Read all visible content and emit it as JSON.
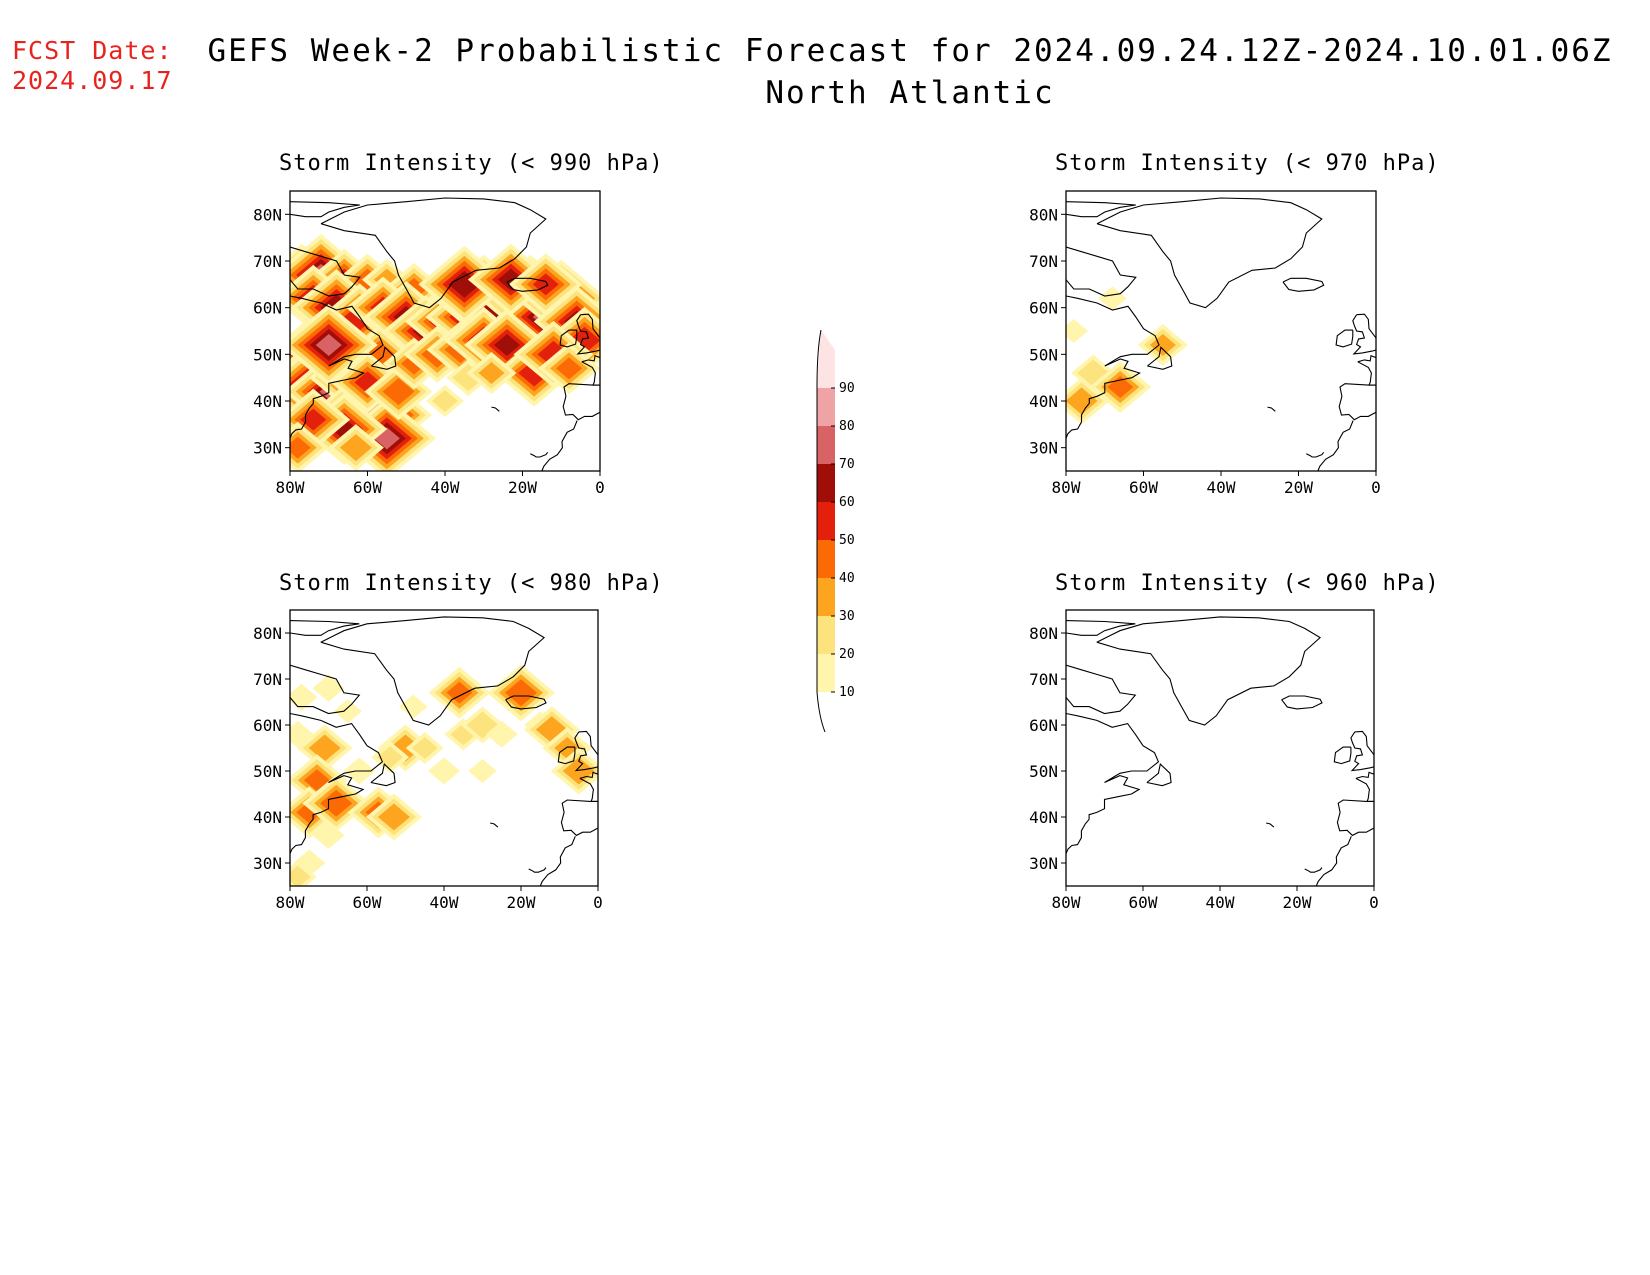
{
  "header": {
    "fcst_label": "FCST Date:",
    "fcst_date": "2024.09.17",
    "title": "GEFS Week-2 Probabilistic Forecast for 2024.09.24.12Z-2024.10.01.06Z",
    "subtitle": "North Atlantic"
  },
  "axes": {
    "lat_labels": [
      "80N",
      "70N",
      "60N",
      "50N",
      "40N",
      "30N"
    ],
    "lon_labels": [
      "80W",
      "60W",
      "40W",
      "20W",
      "0"
    ]
  },
  "colorbar": {
    "levels": [
      "10",
      "20",
      "30",
      "40",
      "50",
      "60",
      "70",
      "80",
      "90"
    ],
    "colors": [
      "#fff5ac",
      "#fde37e",
      "#fda51f",
      "#fc6a05",
      "#e3200c",
      "#a00f07",
      "#d96364",
      "#f0a3a5",
      "#fde3e3"
    ]
  },
  "chart_data": [
    {
      "type": "heatmap",
      "title": "Storm Intensity (< 990 hPa)",
      "unit": "probability %",
      "x": "longitude",
      "y": "latitude",
      "xlim": [
        -80,
        0
      ],
      "ylim": [
        25,
        85
      ],
      "grid": false,
      "points": [
        {
          "lon": -77,
          "lat": 66,
          "v": 60
        },
        {
          "lon": -72,
          "lat": 67,
          "v": 70
        },
        {
          "lon": -66,
          "lat": 66,
          "v": 50
        },
        {
          "lon": -60,
          "lat": 66,
          "v": 40
        },
        {
          "lon": -55,
          "lat": 66,
          "v": 30
        },
        {
          "lon": -48,
          "lat": 64,
          "v": 40
        },
        {
          "lon": -74,
          "lat": 62,
          "v": 55
        },
        {
          "lon": -68,
          "lat": 60,
          "v": 65
        },
        {
          "lon": -62,
          "lat": 58,
          "v": 55
        },
        {
          "lon": -56,
          "lat": 60,
          "v": 50
        },
        {
          "lon": -50,
          "lat": 58,
          "v": 60
        },
        {
          "lon": -45,
          "lat": 55,
          "v": 60
        },
        {
          "lon": -40,
          "lat": 57,
          "v": 55
        },
        {
          "lon": -34,
          "lat": 58,
          "v": 60
        },
        {
          "lon": -30,
          "lat": 62,
          "v": 75
        },
        {
          "lon": -25,
          "lat": 60,
          "v": 70
        },
        {
          "lon": -18,
          "lat": 62,
          "v": 75
        },
        {
          "lon": -14,
          "lat": 58,
          "v": 70
        },
        {
          "lon": -10,
          "lat": 62,
          "v": 65
        },
        {
          "lon": -6,
          "lat": 57,
          "v": 60
        },
        {
          "lon": -4,
          "lat": 53,
          "v": 55
        },
        {
          "lon": -35,
          "lat": 65,
          "v": 65
        },
        {
          "lon": -23,
          "lat": 66,
          "v": 60
        },
        {
          "lon": -14,
          "lat": 65,
          "v": 50
        },
        {
          "lon": -76,
          "lat": 50,
          "v": 55
        },
        {
          "lon": -71,
          "lat": 47,
          "v": 65
        },
        {
          "lon": -74,
          "lat": 43,
          "v": 75
        },
        {
          "lon": -69,
          "lat": 42,
          "v": 70
        },
        {
          "lon": -64,
          "lat": 45,
          "v": 60
        },
        {
          "lon": -57,
          "lat": 50,
          "v": 45
        },
        {
          "lon": -62,
          "lat": 38,
          "v": 65
        },
        {
          "lon": -56,
          "lat": 37,
          "v": 70
        },
        {
          "lon": -55,
          "lat": 32,
          "v": 70
        },
        {
          "lon": -66,
          "lat": 34,
          "v": 60
        },
        {
          "lon": -74,
          "lat": 36,
          "v": 50
        },
        {
          "lon": -78,
          "lat": 30,
          "v": 40
        },
        {
          "lon": -60,
          "lat": 44,
          "v": 50
        },
        {
          "lon": -52,
          "lat": 42,
          "v": 45
        },
        {
          "lon": -48,
          "lat": 48,
          "v": 40
        },
        {
          "lon": -42,
          "lat": 50,
          "v": 45
        },
        {
          "lon": -36,
          "lat": 51,
          "v": 45
        },
        {
          "lon": -30,
          "lat": 53,
          "v": 55
        },
        {
          "lon": -24,
          "lat": 52,
          "v": 60
        },
        {
          "lon": -17,
          "lat": 46,
          "v": 55
        },
        {
          "lon": -12,
          "lat": 50,
          "v": 55
        },
        {
          "lon": -8,
          "lat": 47,
          "v": 40
        },
        {
          "lon": -34,
          "lat": 45,
          "v": 25
        },
        {
          "lon": -40,
          "lat": 40,
          "v": 20
        },
        {
          "lon": -28,
          "lat": 46,
          "v": 30
        },
        {
          "lon": -63,
          "lat": 30,
          "v": 35
        },
        {
          "lon": -70,
          "lat": 52,
          "v": 70
        }
      ]
    },
    {
      "type": "heatmap",
      "title": "Storm Intensity (< 970 hPa)",
      "unit": "probability %",
      "x": "longitude",
      "y": "latitude",
      "xlim": [
        -80,
        0
      ],
      "ylim": [
        25,
        85
      ],
      "grid": false,
      "points": [
        {
          "lon": -55,
          "lat": 52,
          "v": 30
        },
        {
          "lon": -73,
          "lat": 46,
          "v": 25
        },
        {
          "lon": -76,
          "lat": 40,
          "v": 35
        },
        {
          "lon": -66,
          "lat": 43,
          "v": 40
        },
        {
          "lon": -78,
          "lat": 55,
          "v": 12
        },
        {
          "lon": -68,
          "lat": 62,
          "v": 12
        }
      ]
    },
    {
      "type": "heatmap",
      "title": "Storm Intensity (< 980 hPa)",
      "unit": "probability %",
      "x": "longitude",
      "y": "latitude",
      "xlim": [
        -80,
        0
      ],
      "ylim": [
        25,
        85
      ],
      "grid": false,
      "points": [
        {
          "lon": -77,
          "lat": 66,
          "v": 15
        },
        {
          "lon": -70,
          "lat": 68,
          "v": 15
        },
        {
          "lon": -78,
          "lat": 58,
          "v": 15
        },
        {
          "lon": -71,
          "lat": 55,
          "v": 35
        },
        {
          "lon": -73,
          "lat": 48,
          "v": 40
        },
        {
          "lon": -75,
          "lat": 41,
          "v": 40
        },
        {
          "lon": -68,
          "lat": 43,
          "v": 45
        },
        {
          "lon": -57,
          "lat": 41,
          "v": 40
        },
        {
          "lon": -53,
          "lat": 40,
          "v": 35
        },
        {
          "lon": -50,
          "lat": 55,
          "v": 35
        },
        {
          "lon": -54,
          "lat": 53,
          "v": 20
        },
        {
          "lon": -45,
          "lat": 55,
          "v": 20
        },
        {
          "lon": -35,
          "lat": 58,
          "v": 20
        },
        {
          "lon": -30,
          "lat": 60,
          "v": 25
        },
        {
          "lon": -25,
          "lat": 58,
          "v": 15
        },
        {
          "lon": -15,
          "lat": 60,
          "v": 15
        },
        {
          "lon": -12,
          "lat": 59,
          "v": 35
        },
        {
          "lon": -8,
          "lat": 55,
          "v": 30
        },
        {
          "lon": -5,
          "lat": 50,
          "v": 35
        },
        {
          "lon": -20,
          "lat": 67,
          "v": 45
        },
        {
          "lon": -36,
          "lat": 67,
          "v": 40
        },
        {
          "lon": -40,
          "lat": 50,
          "v": 15
        },
        {
          "lon": -62,
          "lat": 50,
          "v": 15
        },
        {
          "lon": -30,
          "lat": 50,
          "v": 12
        },
        {
          "lon": -75,
          "lat": 30,
          "v": 15
        },
        {
          "lon": -78,
          "lat": 27,
          "v": 20
        },
        {
          "lon": -65,
          "lat": 63,
          "v": 12
        },
        {
          "lon": -48,
          "lat": 64,
          "v": 12
        },
        {
          "lon": -70,
          "lat": 36,
          "v": 15
        }
      ]
    },
    {
      "type": "heatmap",
      "title": "Storm Intensity (< 960 hPa)",
      "unit": "probability %",
      "x": "longitude",
      "y": "latitude",
      "xlim": [
        -80,
        0
      ],
      "ylim": [
        25,
        85
      ],
      "grid": false,
      "points": []
    }
  ]
}
